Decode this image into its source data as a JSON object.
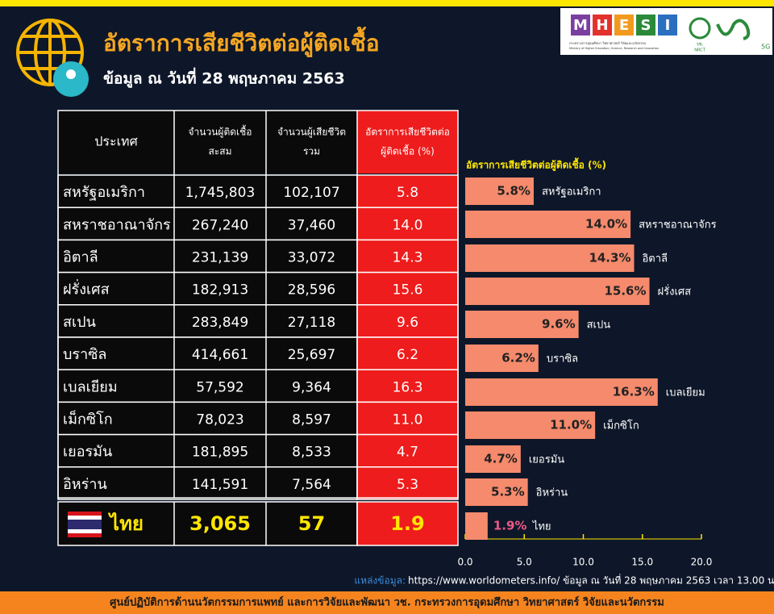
{
  "header": {
    "title": "อัตราการเสียชีวิตต่อผู้ติดเชื้อ",
    "subtitle": "ข้อมูล ณ วันที่ 28 พฤษภาคม 2563"
  },
  "logo": {
    "letters": [
      "M",
      "H",
      "E",
      "S",
      "I"
    ],
    "thai": "กระทรวงการอุดมศึกษา วิทยาศาสตร์ วิจัยและนวัตกรรม",
    "english": "Ministry of Higher Education, Science, Research and Innovation",
    "nrct_thai": "วช.",
    "nrct": "NRCT",
    "five_g": "5G"
  },
  "table": {
    "header": [
      [
        "ประเทศ"
      ],
      [
        "จำนวนผู้ติดเชื้อ",
        "สะสม"
      ],
      [
        "จำนวนผู้เสียชีวิต",
        "รวม"
      ],
      [
        "อัตราการเสียชีวิตต่อ",
        "ผู้ติดเชื้อ (%)"
      ]
    ],
    "rows": [
      [
        "สหรัฐอเมริกา",
        "1,745,803",
        "102,107",
        "5.8"
      ],
      [
        "สหราชอาณาจักร",
        "267,240",
        "37,460",
        "14.0"
      ],
      [
        "อิตาลี",
        "231,139",
        "33,072",
        "14.3"
      ],
      [
        "ฝรั่งเศส",
        "182,913",
        "28,596",
        "15.6"
      ],
      [
        "สเปน",
        "283,849",
        "27,118",
        "9.6"
      ],
      [
        "บราซิล",
        "414,661",
        "25,697",
        "6.2"
      ],
      [
        "เบลเยียม",
        "57,592",
        "9,364",
        "16.3"
      ],
      [
        "เม็กซิโก",
        "78,023",
        "8,597",
        "11.0"
      ],
      [
        "เยอรมัน",
        "181,895",
        "8,533",
        "4.7"
      ],
      [
        "อิหร่าน",
        "141,591",
        "7,564",
        "5.3"
      ]
    ],
    "highlight_row": [
      "ไทย",
      "3,065",
      "57",
      "1.9"
    ]
  },
  "chart_data": {
    "type": "bar",
    "orientation": "horizontal",
    "title": "อัตราการเสียชีวิตต่อผู้ติดเชื้อ (%)",
    "categories": [
      "สหรัฐอเมริกา",
      "สหราชอาณาจักร",
      "อิตาลี",
      "ฝรั่งเศส",
      "สเปน",
      "บราซิล",
      "เบลเยียม",
      "เม็กซิโก",
      "เยอรมัน",
      "อิหร่าน",
      "ไทย"
    ],
    "values": [
      5.8,
      14.0,
      14.3,
      15.6,
      9.6,
      6.2,
      16.3,
      11.0,
      4.7,
      5.3,
      1.9
    ],
    "value_labels": [
      "5.8%",
      "14.0%",
      "14.3%",
      "15.6%",
      "9.6%",
      "6.2%",
      "16.3%",
      "11.0%",
      "4.7%",
      "5.3%",
      "1.9%"
    ],
    "color": "#f58a6c",
    "xlim": [
      0,
      20
    ],
    "xticks": [
      {
        "value": 0,
        "label": "0.0"
      },
      {
        "value": 5,
        "label": "5.0"
      },
      {
        "value": 10,
        "label": "10.0"
      },
      {
        "value": 15,
        "label": "15.0"
      },
      {
        "value": 20,
        "label": "20.0"
      }
    ]
  },
  "source": {
    "label": "แหล่งข้อมูล:",
    "text": "https://www.worldometers.info/ ข้อมูล ณ วันที่ 28 พฤษภาคม 2563 เวลา 13.00 น."
  },
  "footer": "ศูนย์ปฏิบัติการด้านนวัตกรรมการแพทย์ และการวิจัยและพัฒนา วช.  กระทรวงการอุดมศึกษา วิทยาศาสตร์ วิจัยและนวัตกรรม"
}
